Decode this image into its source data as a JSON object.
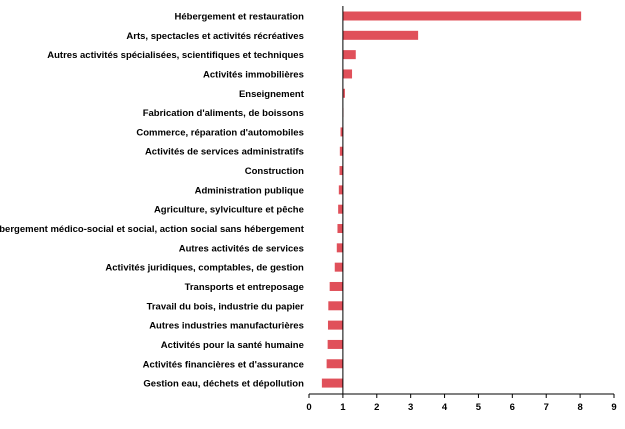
{
  "chart_data": {
    "type": "bar",
    "orientation": "horizontal",
    "title": "",
    "xlabel": "",
    "ylabel": "",
    "xlim": [
      0,
      9
    ],
    "x_ticks": [
      "0",
      "1",
      "2",
      "3",
      "4",
      "5",
      "6",
      "7",
      "8",
      "9"
    ],
    "grid": false,
    "legend": "none",
    "bar_color": "#e0505a",
    "baseline": 1,
    "categories": [
      "Hébergement et restauration",
      "Arts, spectacles et activités récréatives",
      "Autres activités spécialisées, scientifiques et techniques",
      "Activités immobilières",
      "Enseignement",
      "Fabrication d'aliments, de boissons",
      "Commerce, réparation d'automobiles",
      "Activités de services administratifs",
      "Construction",
      "Administration publique",
      "Agriculture, sylviculture et pêche",
      "Hébergement médico-social et social, action social sans hébergement",
      "Autres activités de services",
      "Activités juridiques, comptables, de gestion",
      "Transports et entreposage",
      "Travail du bois, industrie du papier",
      "Autres industries manufacturières",
      "Activités pour la santé humaine",
      "Activités financières et d'assurance",
      "Gestion eau, déchets et dépollution"
    ],
    "values": [
      8.03,
      3.22,
      1.38,
      1.27,
      1.06,
      0.99,
      0.93,
      0.91,
      0.9,
      0.88,
      0.86,
      0.84,
      0.82,
      0.76,
      0.61,
      0.57,
      0.56,
      0.55,
      0.52,
      0.38
    ]
  }
}
